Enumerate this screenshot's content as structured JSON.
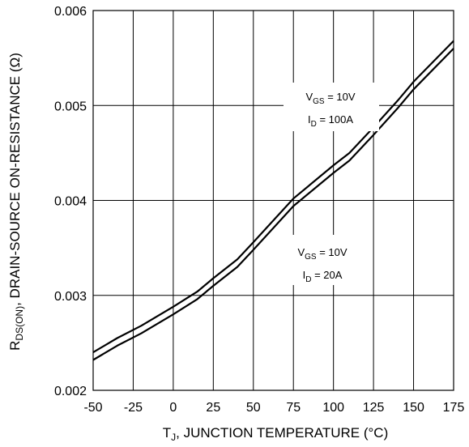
{
  "chart_data": {
    "type": "line",
    "xlabel": {
      "main": "T",
      "sub": "J",
      "rest": ", JUNCTION TEMPERATURE (°C)"
    },
    "ylabel": {
      "main": "R",
      "sub": "DS(ON)",
      "rest": ", DRAIN-SOURCE ON-RESISTANCE (Ω)"
    },
    "xlim": [
      -50,
      175
    ],
    "ylim": [
      0.002,
      0.006
    ],
    "x_ticks": [
      -50,
      -25,
      0,
      25,
      50,
      75,
      100,
      125,
      150,
      175
    ],
    "x_tick_labels": [
      "-50",
      "-25",
      "0",
      "25",
      "50",
      "75",
      "100",
      "125",
      "150",
      "175"
    ],
    "y_ticks": [
      0.002,
      0.003,
      0.004,
      0.005,
      0.006
    ],
    "y_tick_labels": [
      "0.002",
      "0.003",
      "0.004",
      "0.005",
      "0.006"
    ],
    "grid": true,
    "series": [
      {
        "x": [
          -50,
          -35,
          -20,
          0,
          15,
          25,
          40,
          50,
          75,
          100,
          110,
          125,
          140,
          150,
          175
        ],
        "y": [
          0.0024,
          0.00255,
          0.00268,
          0.00288,
          0.00304,
          0.00318,
          0.00338,
          0.00356,
          0.00402,
          0.00437,
          0.0045,
          0.00477,
          0.00505,
          0.00525,
          0.00568
        ]
      },
      {
        "x": [
          -50,
          -35,
          -20,
          0,
          15,
          25,
          40,
          50,
          75,
          100,
          110,
          125,
          140,
          150,
          175
        ],
        "y": [
          0.00232,
          0.00247,
          0.0026,
          0.0028,
          0.00296,
          0.0031,
          0.0033,
          0.00348,
          0.00394,
          0.00429,
          0.00442,
          0.00469,
          0.00497,
          0.00517,
          0.0056
        ]
      }
    ],
    "annotations": [
      {
        "vgs_main": "V",
        "vgs_sub": "GS",
        "vgs_rest": " = 10V",
        "id_main": "I",
        "id_sub": "D",
        "id_rest": " = 100A"
      },
      {
        "vgs_main": "V",
        "vgs_sub": "GS",
        "vgs_rest": " = 10V",
        "id_main": "I",
        "id_sub": "D",
        "id_rest": " = 20A"
      }
    ]
  }
}
